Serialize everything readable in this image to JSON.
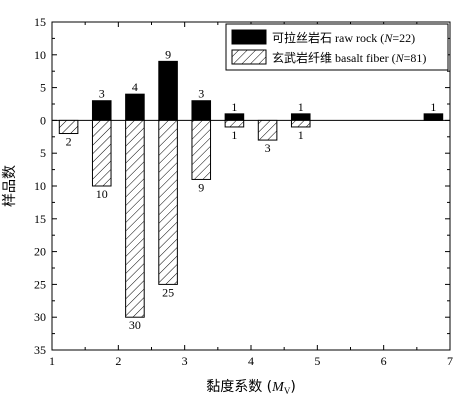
{
  "chart_data": {
    "type": "bar",
    "xlabel_prefix": "黏度系数 (",
    "xlabel_var": "M",
    "xlabel_sub": "V",
    "xlabel_suffix": ")",
    "ylabel": "样品数",
    "xlim": [
      1,
      7
    ],
    "xticks": [
      "1",
      "2",
      "3",
      "4",
      "5",
      "6",
      "7"
    ],
    "yticks_top": [
      "15",
      "10",
      "5",
      "0"
    ],
    "yticks_bottom": [
      "5",
      "10",
      "15",
      "20",
      "25",
      "30",
      "35"
    ],
    "ylim_up": 15,
    "ylim_down": 35,
    "series": [
      {
        "name": "可拉丝岩石 raw rock (N=22)",
        "legend_text_prefix": "可拉丝岩石 raw rock (",
        "legend_n_var": "N",
        "legend_n_value": "=22)",
        "direction": "up",
        "fill": "#000000",
        "points": [
          {
            "x": 1.75,
            "value": 3,
            "label": "3"
          },
          {
            "x": 2.25,
            "value": 4,
            "label": "4"
          },
          {
            "x": 2.75,
            "value": 9,
            "label": "9"
          },
          {
            "x": 3.25,
            "value": 3,
            "label": "3"
          },
          {
            "x": 3.75,
            "value": 1,
            "label": "1"
          },
          {
            "x": 4.75,
            "value": 1,
            "label": "1"
          },
          {
            "x": 6.75,
            "value": 1,
            "label": "1"
          }
        ]
      },
      {
        "name": "玄武岩纤维 basalt fiber (N=81)",
        "legend_text_prefix": "玄武岩纤维 basalt fiber (",
        "legend_n_var": "N",
        "legend_n_value": "=81)",
        "direction": "down",
        "fill": "hatched",
        "points": [
          {
            "x": 1.25,
            "value": 2,
            "label": "2"
          },
          {
            "x": 1.75,
            "value": 10,
            "label": "10"
          },
          {
            "x": 2.25,
            "value": 30,
            "label": "30"
          },
          {
            "x": 2.75,
            "value": 25,
            "label": "25"
          },
          {
            "x": 3.25,
            "value": 9,
            "label": "9"
          },
          {
            "x": 3.75,
            "value": 1,
            "label": "1"
          },
          {
            "x": 4.25,
            "value": 3,
            "label": "3"
          },
          {
            "x": 4.75,
            "value": 1,
            "label": "1"
          }
        ]
      }
    ],
    "legend_position": "top-right"
  }
}
